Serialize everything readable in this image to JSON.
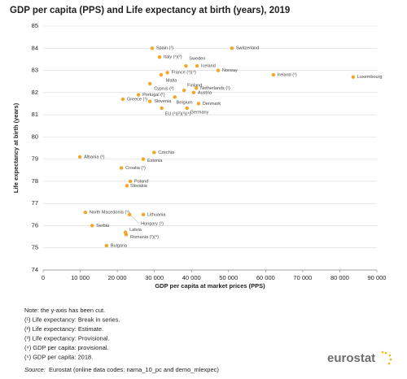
{
  "chart_data": {
    "type": "scatter",
    "title": "GDP per capita (PPS) and Life expectancy at birth (years), 2019",
    "xlabel": "GDP per capita at market prices (PPS)",
    "ylabel": "Life expectancy at birth (years)",
    "color": "#f5a623",
    "grid": true,
    "xlim": [
      0,
      90000
    ],
    "ylim": [
      74,
      85
    ],
    "xticks": [
      0,
      {
        "value": 10000,
        "label": "10 000"
      },
      {
        "value": 20000,
        "label": "20 000"
      },
      {
        "value": 30000,
        "label": "30 000"
      },
      {
        "value": 40000,
        "label": "40 000"
      },
      {
        "value": 50000,
        "label": "50 000"
      },
      {
        "value": 60000,
        "label": "60 000"
      },
      {
        "value": 70000,
        "label": "70 000"
      },
      {
        "value": 80000,
        "label": "80 000"
      },
      {
        "value": 90000,
        "label": "90 000"
      }
    ],
    "yticks": [
      74,
      75,
      76,
      77,
      78,
      79,
      80,
      81,
      82,
      83,
      84,
      85
    ],
    "labels": [
      "Spain (¹)",
      "Switzerland",
      "Italy (¹)(²)",
      "Sweden",
      "Iceland",
      "France (¹)(⁴)",
      "Malta",
      "Norway",
      "Ireland (¹)",
      "Luxembourg",
      "Cyprus (²)",
      "Finland",
      "Netherlands (¹)",
      "Portugal (¹)",
      "Austria",
      "Belgium",
      "Greece (¹)",
      "Slovenia",
      "Denmark",
      "EU (¹)(²)(³)(⁴)",
      "Germany",
      "Czechia",
      "Estonia",
      "Albania (¹)",
      "Croatia (¹)",
      "Poland",
      "Slovakia",
      "North Macedonia (¹)",
      "Lithuania",
      "Hungary (¹)",
      "Serbia",
      "Latvia",
      "Romania (¹)(⁴)",
      "Bulgaria"
    ],
    "x": [
      29400,
      50900,
      31400,
      38500,
      41500,
      33500,
      31800,
      47200,
      62100,
      83600,
      28800,
      38000,
      41300,
      25700,
      40600,
      35500,
      21500,
      28800,
      41900,
      32000,
      38800,
      29900,
      27000,
      9900,
      21100,
      23500,
      22600,
      11400,
      27000,
      23300,
      13200,
      22200,
      22400,
      17100
    ],
    "y": [
      84.0,
      84.0,
      83.6,
      83.2,
      83.2,
      82.9,
      82.8,
      83.0,
      82.8,
      82.7,
      82.4,
      82.1,
      82.2,
      81.9,
      82.0,
      81.8,
      81.7,
      81.6,
      81.5,
      81.3,
      81.3,
      79.3,
      79.0,
      79.1,
      78.6,
      78.0,
      77.8,
      76.6,
      76.5,
      76.5,
      76.0,
      75.7,
      75.6,
      75.1
    ],
    "notes": [
      "Note: the y-axis has been cut.",
      "(¹) Life expectancy: Break in series.",
      "(²) Life expectancy: Estimate.",
      "(³) Life expectancy: Provisional.",
      "(⁴) GDP per capita: provisional.",
      "(⁵) GDP per capita: 2018."
    ],
    "source_prefix": "Source:",
    "source": "Eurostat (online data codes: nama_10_pc and demo_mlexpec)",
    "logo": "eurostat"
  }
}
